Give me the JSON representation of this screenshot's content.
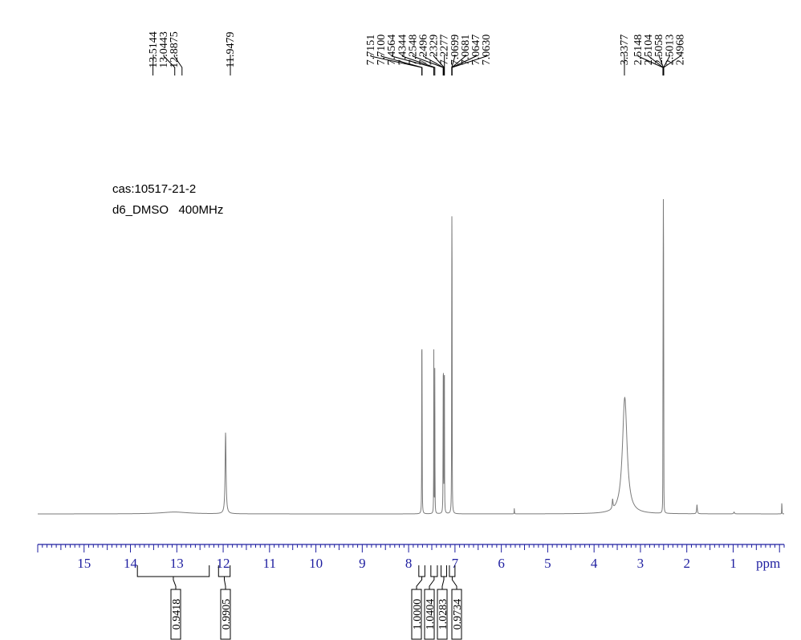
{
  "sample": {
    "cas": "cas:10517-21-2",
    "conditions": "d6_DMSO   400MHz"
  },
  "chart_data": {
    "type": "line",
    "xlabel": "ppm",
    "xlim": [
      16,
      -0.1
    ],
    "x_ticks": [
      15,
      14,
      13,
      12,
      11,
      10,
      9,
      8,
      7,
      6,
      5,
      4,
      3,
      2,
      1
    ],
    "y_range": [
      0,
      1.0
    ],
    "colors": {
      "spectrum": "#7a7a7a",
      "axis": "#1e1ea0",
      "labels": "#000000"
    },
    "peaks": [
      {
        "shift": 11.9479,
        "height": 0.26,
        "width": 0.012
      },
      {
        "shift": 7.7151,
        "height": 0.55,
        "width": 0.0025
      },
      {
        "shift": 7.71,
        "height": 0.5,
        "width": 0.0025
      },
      {
        "shift": 7.4564,
        "height": 0.52,
        "width": 0.0025
      },
      {
        "shift": 7.4344,
        "height": 0.48,
        "width": 0.0025
      },
      {
        "shift": 7.2548,
        "height": 0.42,
        "width": 0.0025
      },
      {
        "shift": 7.2496,
        "height": 0.4,
        "width": 0.0025
      },
      {
        "shift": 7.2329,
        "height": 0.4,
        "width": 0.0025
      },
      {
        "shift": 7.2277,
        "height": 0.38,
        "width": 0.0025
      },
      {
        "shift": 7.0699,
        "height": 0.5,
        "width": 0.0025
      },
      {
        "shift": 7.0681,
        "height": 0.46,
        "width": 0.0025
      },
      {
        "shift": 7.0647,
        "height": 0.42,
        "width": 0.0025
      },
      {
        "shift": 7.063,
        "height": 0.4,
        "width": 0.0025
      },
      {
        "shift": 3.3377,
        "height": 0.37,
        "width": 0.06
      },
      {
        "shift": 2.5148,
        "height": 0.35,
        "width": 0.0015
      },
      {
        "shift": 2.5104,
        "height": 0.7,
        "width": 0.0015
      },
      {
        "shift": 2.5058,
        "height": 0.96,
        "width": 0.0015
      },
      {
        "shift": 2.5013,
        "height": 0.7,
        "width": 0.0015
      },
      {
        "shift": 2.4968,
        "height": 0.35,
        "width": 0.0015
      },
      {
        "shift": 13.05,
        "height": 0.006,
        "width": 0.35
      },
      {
        "shift": 5.72,
        "height": 0.02,
        "width": 0.003
      },
      {
        "shift": 3.6,
        "height": 0.03,
        "width": 0.01
      },
      {
        "shift": 1.78,
        "height": 0.03,
        "width": 0.008
      },
      {
        "shift": 0.98,
        "height": 0.006,
        "width": 0.01
      },
      {
        "shift": -0.05,
        "height": 0.065,
        "width": 0.002
      }
    ],
    "peak_label_groups": [
      {
        "labels": [
          "13.5144",
          "13.0443",
          "12.8875"
        ],
        "anchors": [
          13.5144,
          13.0443,
          12.8875
        ]
      },
      {
        "labels": [
          "11.9479"
        ],
        "anchors": [
          11.9479
        ]
      },
      {
        "labels": [
          "7.7151",
          "7.7100",
          "7.4564",
          "7.4344",
          "7.2548",
          "7.2496",
          "7.2329",
          "7.2277",
          "7.0699",
          "7.0681",
          "7.0647",
          "7.0630"
        ],
        "anchors": [
          7.7151,
          7.71,
          7.4564,
          7.4344,
          7.2548,
          7.2496,
          7.2329,
          7.2277,
          7.0699,
          7.0681,
          7.0647,
          7.063
        ]
      },
      {
        "labels": [
          "3.3377"
        ],
        "anchors": [
          3.3377
        ]
      },
      {
        "labels": [
          "2.5148",
          "2.5104",
          "2.5058",
          "2.5013",
          "2.4968"
        ],
        "anchors": [
          2.5148,
          2.5104,
          2.5058,
          2.5013,
          2.4968
        ]
      }
    ],
    "integrals": [
      {
        "value": "0.9418",
        "from": 13.85,
        "to": 12.3
      },
      {
        "value": "0.9905",
        "from": 12.1,
        "to": 11.85
      },
      {
        "value": "1.0000",
        "from": 7.78,
        "to": 7.65
      },
      {
        "value": "1.0404",
        "from": 7.52,
        "to": 7.38
      },
      {
        "value": "1.0283",
        "from": 7.3,
        "to": 7.18
      },
      {
        "value": "0.9734",
        "from": 7.12,
        "to": 7.0
      }
    ]
  }
}
